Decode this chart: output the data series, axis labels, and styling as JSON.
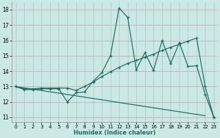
{
  "xlabel": "Humidex (Indice chaleur)",
  "bg_color": "#cce8e4",
  "grid_color_h": "#c8a0a0",
  "grid_color_v": "#a0c8c4",
  "line_color": "#1a6e64",
  "xlim": [
    -0.5,
    23.5
  ],
  "ylim": [
    10.7,
    18.5
  ],
  "xticks": [
    0,
    1,
    2,
    3,
    4,
    5,
    6,
    7,
    8,
    9,
    10,
    11,
    12,
    13,
    14,
    15,
    16,
    17,
    18,
    19,
    20,
    21,
    22,
    23
  ],
  "yticks": [
    11,
    12,
    13,
    14,
    15,
    16,
    17,
    18
  ],
  "line1_x": [
    0,
    1,
    2,
    3,
    4,
    5,
    6,
    7,
    8,
    9,
    10,
    11,
    12,
    13,
    14,
    15,
    16,
    17,
    18,
    19,
    20,
    21,
    22,
    23
  ],
  "line1_y": [
    13.0,
    12.8,
    12.8,
    12.85,
    12.85,
    12.85,
    12.0,
    12.6,
    12.65,
    13.35,
    13.9,
    15.0,
    18.1,
    17.5,
    14.1,
    15.2,
    14.05,
    16.0,
    14.5,
    15.85,
    14.3,
    14.35,
    12.5,
    11.0
  ],
  "line2_x": [
    0,
    1,
    2,
    3,
    4,
    5,
    6,
    7,
    8,
    9,
    10,
    11,
    12,
    13,
    14,
    15,
    16,
    17,
    18,
    19,
    20,
    21,
    22,
    23
  ],
  "line2_y": [
    13.0,
    12.85,
    12.85,
    12.9,
    12.9,
    12.9,
    12.9,
    12.75,
    13.0,
    13.3,
    13.65,
    13.95,
    14.25,
    14.5,
    14.7,
    14.9,
    15.1,
    15.35,
    15.55,
    15.75,
    15.95,
    16.15,
    13.0,
    11.0
  ],
  "line3_x": [
    0,
    22
  ],
  "line3_y": [
    13.0,
    11.1
  ]
}
